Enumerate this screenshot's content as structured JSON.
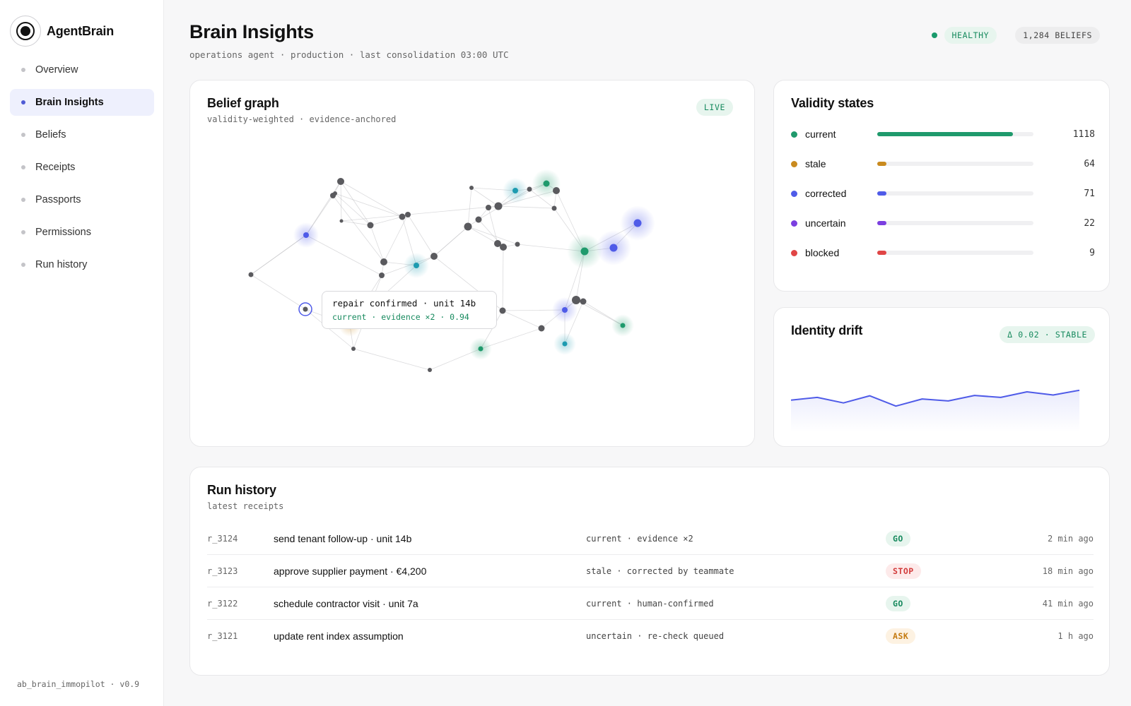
{
  "app": {
    "name": "AgentBrain",
    "version": "ab_brain_immopilot · v0.9"
  },
  "nav": {
    "items": [
      {
        "label": "Overview"
      },
      {
        "label": "Brain Insights",
        "active": true
      },
      {
        "label": "Beliefs"
      },
      {
        "label": "Receipts"
      },
      {
        "label": "Passports"
      },
      {
        "label": "Permissions"
      },
      {
        "label": "Run history"
      }
    ]
  },
  "header": {
    "title": "Brain Insights",
    "subtitle": "operations agent · production · last consolidation 03:00 UTC",
    "health": "HEALTHY",
    "beliefs": "1,284 BELIEFS"
  },
  "graph": {
    "title": "Belief graph",
    "subtitle": "validity-weighted · evidence-anchored",
    "live": "LIVE",
    "tooltip": {
      "line1": "repair confirmed · unit 14b",
      "line2": "current · evidence ×2 · 0.94"
    }
  },
  "validity": {
    "title": "Validity states",
    "total": 1284,
    "states": [
      {
        "label": "current",
        "count": 1118,
        "color": "#1f9a6c"
      },
      {
        "label": "stale",
        "count": 64,
        "color": "#c98a1e"
      },
      {
        "label": "corrected",
        "count": 71,
        "color": "#4f5be8"
      },
      {
        "label": "uncertain",
        "count": 22,
        "color": "#7b3fe0"
      },
      {
        "label": "blocked",
        "count": 9,
        "color": "#e04545"
      }
    ]
  },
  "drift": {
    "title": "Identity drift",
    "badge": "Δ 0.02 · STABLE",
    "chart_data": {
      "type": "area",
      "values": [
        0.45,
        0.52,
        0.38,
        0.56,
        0.3,
        0.48,
        0.43,
        0.57,
        0.52,
        0.66,
        0.58,
        0.7
      ]
    }
  },
  "runs": {
    "title": "Run history",
    "subtitle": "latest receipts",
    "rows": [
      {
        "id": "r_3124",
        "action": "send tenant follow-up · unit 14b",
        "status": "current · evidence ×2",
        "verdict": "GO",
        "verdict_class": "go",
        "time": "2 min ago"
      },
      {
        "id": "r_3123",
        "action": "approve supplier payment · €4,200",
        "status": "stale · corrected by teammate",
        "verdict": "STOP",
        "verdict_class": "stop",
        "time": "18 min ago"
      },
      {
        "id": "r_3122",
        "action": "schedule contractor visit · unit 7a",
        "status": "current · human-confirmed",
        "verdict": "GO",
        "verdict_class": "go",
        "time": "41 min ago"
      },
      {
        "id": "r_3121",
        "action": "update rent index assumption",
        "status": "uncertain · re-check queued",
        "verdict": "ASK",
        "verdict_class": "ask",
        "time": "1 h ago"
      }
    ]
  }
}
